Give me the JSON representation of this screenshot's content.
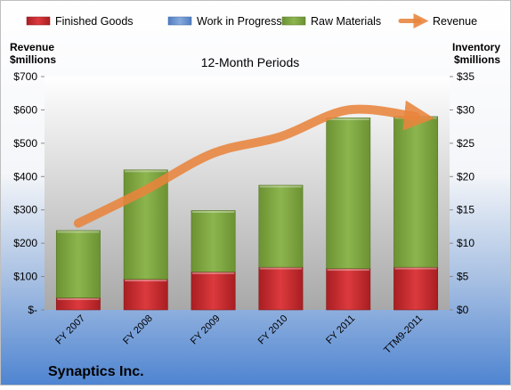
{
  "chart_data": {
    "type": "bar",
    "title": "12-Month Periods",
    "company": "Synaptics Inc.",
    "left_axis_label": [
      "Revenue",
      "$millions"
    ],
    "right_axis_label": [
      "Inventory",
      "$millions"
    ],
    "categories": [
      "FY 2007",
      "FY 2008",
      "FY 2009",
      "FY 2010",
      "FY 2011",
      "TTM9-2011"
    ],
    "left_ylim": [
      0,
      700
    ],
    "left_ticks": [
      "$-",
      "$100",
      "$200",
      "$300",
      "$400",
      "$500",
      "$600",
      "$700"
    ],
    "right_ylim": [
      0,
      35
    ],
    "right_ticks": [
      "$0",
      "$5",
      "$10",
      "$15",
      "$20",
      "$25",
      "$30",
      "$35"
    ],
    "legend": [
      "Finished Goods",
      "Work in Progress",
      "Raw Materials",
      "Revenue"
    ],
    "legend_position": "top",
    "grid": false,
    "series": [
      {
        "name": "Finished Goods",
        "axis": "right",
        "color": "#c0282b",
        "values": [
          1.8,
          4.6,
          5.7,
          6.4,
          6.2,
          6.4
        ]
      },
      {
        "name": "Work in Progress",
        "axis": "right",
        "color": "#6f93c8",
        "values": [
          0,
          0,
          0,
          0,
          0,
          0
        ]
      },
      {
        "name": "Raw Materials",
        "axis": "right",
        "color": "#7ba23f",
        "values": [
          10.1,
          16.4,
          9.2,
          12.3,
          22.6,
          22.6
        ]
      },
      {
        "name": "Revenue",
        "axis": "left",
        "color": "#e8843c",
        "type": "line",
        "values": [
          260,
          360,
          470,
          520,
          600,
          580
        ]
      }
    ]
  }
}
